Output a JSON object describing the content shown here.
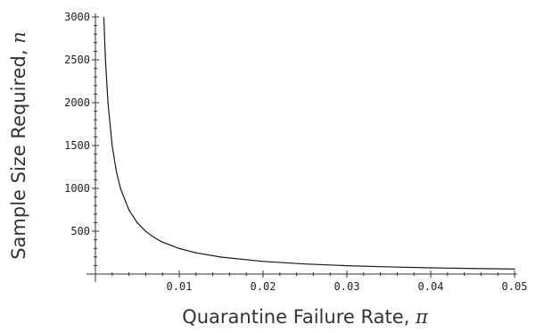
{
  "chart_data": {
    "type": "line",
    "title": "",
    "xlabel": "Quarantine Failure Rate,",
    "xlabel_symbol": "π",
    "ylabel": "Sample Size Required,",
    "ylabel_symbol": "n",
    "xlim": [
      0,
      0.05
    ],
    "ylim": [
      0,
      3000
    ],
    "xticks": [
      0.01,
      0.02,
      0.03,
      0.04,
      0.05
    ],
    "xtick_labels": [
      "0.01",
      "0.02",
      "0.03",
      "0.04",
      "0.05"
    ],
    "yticks": [
      500,
      1000,
      1500,
      2000,
      2500,
      3000
    ],
    "ytick_labels": [
      "500",
      "1000",
      "1500",
      "2000",
      "2500",
      "3000"
    ],
    "grid": false,
    "series": [
      {
        "color": "#1a1a1a",
        "x": [
          0.001,
          0.0012,
          0.0015,
          0.002,
          0.0025,
          0.003,
          0.004,
          0.005,
          0.006,
          0.007,
          0.008,
          0.01,
          0.012,
          0.015,
          0.02,
          0.025,
          0.03,
          0.035,
          0.04,
          0.045,
          0.05
        ],
        "y": [
          2994,
          2495,
          1996,
          1497,
          1197,
          997,
          748,
          598,
          498,
          427,
          373,
          298,
          248,
          198,
          148,
          118,
          98,
          84,
          73,
          65,
          59
        ]
      }
    ]
  }
}
